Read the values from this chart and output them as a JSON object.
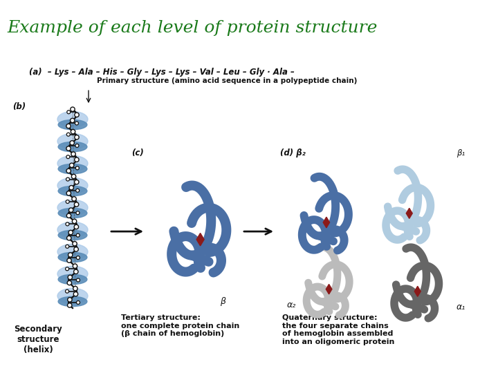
{
  "title": "Example of each level of protein structure",
  "title_color": "#1a7a1a",
  "title_bg_color": "#90EE90",
  "title_fontsize": 18,
  "bg_color": "#ffffff",
  "fig_width": 7.2,
  "fig_height": 5.4,
  "dpi": 100,
  "primary_label": "(a)  – Lys – Ala – His – Gly – Lys – Lys – Val – Leu – Gly · Ala –",
  "primary_sublabel": "Primary structure (amino acid sequence in a polypeptide chain)",
  "secondary_label_b": "(b)",
  "secondary_label": "Secondary\nstructure\n(helix)",
  "tertiary_label_c": "(c)",
  "tertiary_label": "Tertiary structure:\none complete protein chain\n(β chain of hemoglobin)",
  "quaternary_label_d": "(d) β₂",
  "quaternary_label": "Quaternary structure:\nthe four separate chains\nof hemoglobin assembled\ninto an oligomeric protein",
  "beta1_label": "β₁",
  "beta_label": "β",
  "alpha2_label": "α₂",
  "alpha1_label": "α₁",
  "helix_color": "#5b8db8",
  "helix_light": "#a8c8e8",
  "dark_color": "#111111",
  "tertiary_color": "#4a6fa5",
  "heme_color": "#8b1a1a",
  "quat_blue_dark": "#4a6fa5",
  "quat_blue_light": "#b0cce0",
  "quat_gray_dark": "#666666",
  "quat_gray_light": "#bbbbbb",
  "arrow_color": "#111111"
}
